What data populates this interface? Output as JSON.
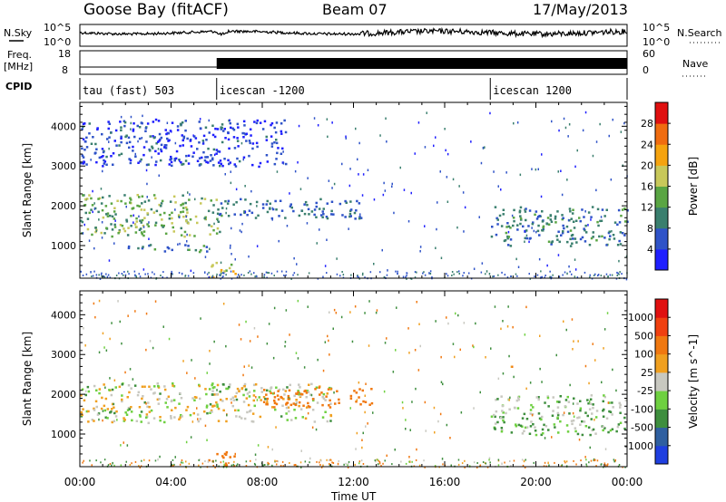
{
  "header": {
    "station": "Goose Bay (fitACF)",
    "beam": "Beam 07",
    "date": "17/May/2013"
  },
  "strips": {
    "nsky_label": "N.Sky",
    "nsearch_label": "N.Search",
    "noise_ticks": [
      "10^5",
      "10^0"
    ],
    "freq_label_1": "Freq.",
    "freq_label_2": "[MHz]",
    "freq_ticks": [
      "18",
      "8"
    ],
    "nave_label": "Nave",
    "nave_ticks": [
      "60",
      "0"
    ],
    "cpid_label": "CPID",
    "cpid_segments": [
      {
        "label": "tau (fast) 503",
        "start_h": 0,
        "end_h": 6
      },
      {
        "label": "icescan -1200",
        "start_h": 6,
        "end_h": 18
      },
      {
        "label": "icescan 1200",
        "start_h": 18,
        "end_h": 24
      }
    ]
  },
  "chart_data": [
    {
      "type": "heatmap",
      "title": "",
      "xlabel": "Time UT",
      "ylabel": "Slant Range [km]",
      "xlim_hours": [
        0,
        24
      ],
      "x_tick_labels": [
        "00:00",
        "04:00",
        "08:00",
        "12:00",
        "16:00",
        "20:00",
        "00:00"
      ],
      "ylim": [
        180,
        4600
      ],
      "y_ticks": [
        1000,
        2000,
        3000,
        4000
      ],
      "colorbar": {
        "label": "Power [dB]",
        "tick_labels": [
          "4",
          "8",
          "12",
          "16",
          "20",
          "24",
          "28"
        ],
        "colors": [
          "#1f1fff",
          "#2f53c8",
          "#3a7f6e",
          "#5aa543",
          "#c8c85a",
          "#f5a30f",
          "#f06c10",
          "#e01010"
        ]
      },
      "features": [
        {
          "feature": "main echo band",
          "x_hours": [
            0,
            6.2
          ],
          "y_km": [
            1250,
            2300
          ],
          "power_db": 14
        },
        {
          "feature": "lower echo band",
          "x_hours": [
            2,
            5.8
          ],
          "y_km": [
            850,
            1050
          ],
          "power_db": 10
        },
        {
          "feature": "upper scatter",
          "x_hours": [
            0,
            9
          ],
          "y_km": [
            3000,
            4200
          ],
          "power_db": 5
        },
        {
          "feature": "continued band",
          "x_hours": [
            6,
            12.5
          ],
          "y_km": [
            1700,
            2200
          ],
          "power_db": 8
        },
        {
          "feature": "evening band",
          "x_hours": [
            18,
            24
          ],
          "y_km": [
            1000,
            2000
          ],
          "power_db": 9
        },
        {
          "feature": "near-range enhancement",
          "x_hours": [
            5.6,
            6.8
          ],
          "y_km": [
            200,
            600
          ],
          "power_db": 18
        }
      ]
    },
    {
      "type": "heatmap",
      "title": "",
      "xlabel": "Time UT",
      "ylabel": "Slant Range [km]",
      "xlim_hours": [
        0,
        24
      ],
      "x_tick_labels": [
        "00:00",
        "04:00",
        "08:00",
        "12:00",
        "16:00",
        "20:00",
        "00:00"
      ],
      "ylim": [
        180,
        4600
      ],
      "y_ticks": [
        1000,
        2000,
        3000,
        4000
      ],
      "colorbar": {
        "label": "Velocity [m s^-1]",
        "tick_labels": [
          "1000",
          "500",
          "100",
          "25",
          "-25",
          "-100",
          "-500",
          "-1000"
        ],
        "colors": [
          "#1f3fe0",
          "#2f5fa0",
          "#3e8e3e",
          "#6ed040",
          "#c8c8c0",
          "#f0a020",
          "#f07810",
          "#f04010",
          "#e01010"
        ]
      },
      "features": [
        {
          "feature": "ground scatter band",
          "x_hours": [
            0,
            11
          ],
          "y_km": [
            1300,
            2300
          ],
          "velocity_ms": 0
        },
        {
          "feature": "receding patches",
          "x_hours": [
            8,
            12.8
          ],
          "y_km": [
            1700,
            2200
          ],
          "velocity_ms": -200
        },
        {
          "feature": "near-range receding",
          "x_hours": [
            5.6,
            6.8
          ],
          "y_km": [
            200,
            600
          ],
          "velocity_ms": -300
        },
        {
          "feature": "evening mixed",
          "x_hours": [
            18,
            24
          ],
          "y_km": [
            1000,
            2000
          ],
          "velocity_ms": 50
        }
      ]
    }
  ]
}
